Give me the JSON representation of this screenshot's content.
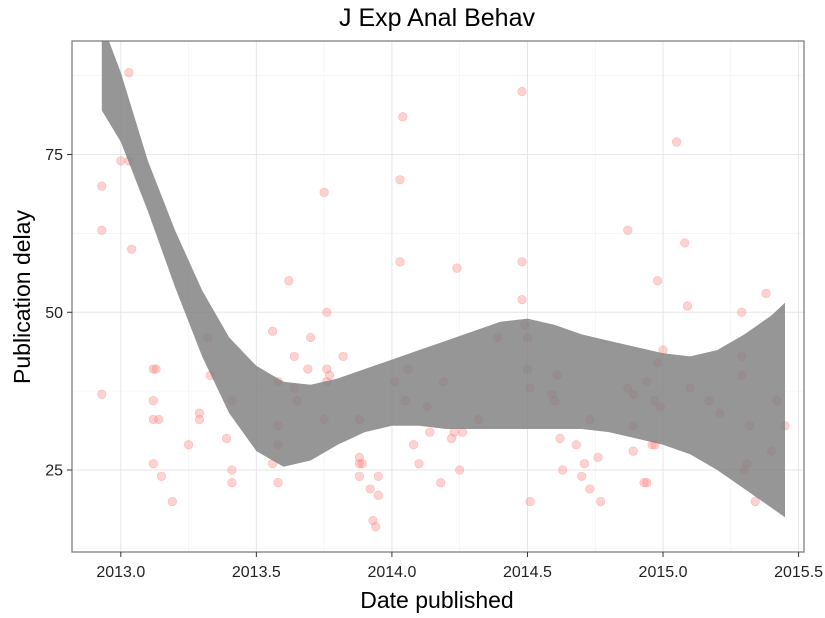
{
  "chart_data": {
    "type": "scatter",
    "title": "J Exp Anal Behav",
    "xlabel": "Date published",
    "ylabel": "Publication delay",
    "xlim": [
      2012.82,
      2015.52
    ],
    "ylim": [
      12,
      93
    ],
    "x_ticks": [
      2013.0,
      2013.5,
      2014.0,
      2014.5,
      2015.0,
      2015.5
    ],
    "x_tick_labels": [
      "2013.0",
      "2013.5",
      "2014.0",
      "2014.5",
      "2015.0",
      "2015.5"
    ],
    "y_ticks": [
      25,
      50,
      75
    ],
    "y_tick_labels": [
      "25",
      "50",
      "75"
    ],
    "grid": true,
    "point_color": "#ff7f7f",
    "band_color": "#7f7f7f",
    "points": [
      [
        2012.93,
        70
      ],
      [
        2012.93,
        63
      ],
      [
        2012.93,
        37
      ],
      [
        2013.0,
        74
      ],
      [
        2013.03,
        74
      ],
      [
        2013.03,
        88
      ],
      [
        2013.04,
        60
      ],
      [
        2013.12,
        41
      ],
      [
        2013.13,
        41
      ],
      [
        2013.12,
        36
      ],
      [
        2013.12,
        33
      ],
      [
        2013.14,
        33
      ],
      [
        2013.12,
        26
      ],
      [
        2013.15,
        24
      ],
      [
        2013.19,
        20
      ],
      [
        2013.25,
        29
      ],
      [
        2013.29,
        34
      ],
      [
        2013.29,
        33
      ],
      [
        2013.32,
        46
      ],
      [
        2013.33,
        40
      ],
      [
        2013.39,
        30
      ],
      [
        2013.41,
        36
      ],
      [
        2013.41,
        25
      ],
      [
        2013.41,
        23
      ],
      [
        2013.56,
        47
      ],
      [
        2013.56,
        26
      ],
      [
        2013.58,
        39
      ],
      [
        2013.58,
        32
      ],
      [
        2013.58,
        29
      ],
      [
        2013.58,
        23
      ],
      [
        2013.62,
        55
      ],
      [
        2013.64,
        43
      ],
      [
        2013.64,
        38
      ],
      [
        2013.65,
        36
      ],
      [
        2013.69,
        41
      ],
      [
        2013.7,
        46
      ],
      [
        2013.75,
        69
      ],
      [
        2013.76,
        50
      ],
      [
        2013.76,
        41
      ],
      [
        2013.76,
        39
      ],
      [
        2013.77,
        40
      ],
      [
        2013.75,
        33
      ],
      [
        2013.82,
        43
      ],
      [
        2013.88,
        33
      ],
      [
        2013.88,
        27
      ],
      [
        2013.88,
        26
      ],
      [
        2013.89,
        26
      ],
      [
        2013.88,
        24
      ],
      [
        2013.92,
        22
      ],
      [
        2013.93,
        17
      ],
      [
        2013.94,
        16
      ],
      [
        2013.95,
        21
      ],
      [
        2013.95,
        24
      ],
      [
        2014.01,
        39
      ],
      [
        2014.03,
        71
      ],
      [
        2014.03,
        58
      ],
      [
        2014.04,
        81
      ],
      [
        2014.05,
        36
      ],
      [
        2014.06,
        41
      ],
      [
        2014.08,
        29
      ],
      [
        2014.1,
        26
      ],
      [
        2014.13,
        35
      ],
      [
        2014.14,
        31
      ],
      [
        2014.18,
        23
      ],
      [
        2014.19,
        39
      ],
      [
        2014.23,
        31
      ],
      [
        2014.22,
        30
      ],
      [
        2014.24,
        57
      ],
      [
        2014.25,
        25
      ],
      [
        2014.26,
        31
      ],
      [
        2014.32,
        33
      ],
      [
        2014.39,
        46
      ],
      [
        2014.48,
        85
      ],
      [
        2014.48,
        58
      ],
      [
        2014.48,
        52
      ],
      [
        2014.49,
        48
      ],
      [
        2014.5,
        46
      ],
      [
        2014.5,
        41
      ],
      [
        2014.51,
        38
      ],
      [
        2014.51,
        20
      ],
      [
        2014.59,
        37
      ],
      [
        2014.6,
        36
      ],
      [
        2014.61,
        40
      ],
      [
        2014.62,
        30
      ],
      [
        2014.63,
        25
      ],
      [
        2014.68,
        29
      ],
      [
        2014.7,
        24
      ],
      [
        2014.71,
        26
      ],
      [
        2014.73,
        33
      ],
      [
        2014.73,
        22
      ],
      [
        2014.76,
        27
      ],
      [
        2014.77,
        20
      ],
      [
        2014.87,
        63
      ],
      [
        2014.87,
        38
      ],
      [
        2014.89,
        37
      ],
      [
        2014.89,
        32
      ],
      [
        2014.89,
        28
      ],
      [
        2014.93,
        23
      ],
      [
        2014.94,
        23
      ],
      [
        2014.94,
        39
      ],
      [
        2014.96,
        29
      ],
      [
        2014.97,
        29
      ],
      [
        2014.97,
        36
      ],
      [
        2014.98,
        42
      ],
      [
        2014.98,
        55
      ],
      [
        2014.99,
        35
      ],
      [
        2015.0,
        44
      ],
      [
        2015.05,
        77
      ],
      [
        2015.08,
        61
      ],
      [
        2015.09,
        51
      ],
      [
        2015.1,
        38
      ],
      [
        2015.17,
        36
      ],
      [
        2015.21,
        34
      ],
      [
        2015.29,
        50
      ],
      [
        2015.29,
        43
      ],
      [
        2015.29,
        40
      ],
      [
        2015.3,
        25
      ],
      [
        2015.31,
        26
      ],
      [
        2015.32,
        32
      ],
      [
        2015.34,
        20
      ],
      [
        2015.4,
        28
      ],
      [
        2015.42,
        36
      ],
      [
        2015.45,
        32
      ],
      [
        2015.38,
        53
      ]
    ],
    "band_upper": [
      [
        2012.93,
        96
      ],
      [
        2013.0,
        88
      ],
      [
        2013.1,
        74
      ],
      [
        2013.2,
        63
      ],
      [
        2013.3,
        53.5
      ],
      [
        2013.4,
        46
      ],
      [
        2013.5,
        41.5
      ],
      [
        2013.6,
        39
      ],
      [
        2013.7,
        38.5
      ],
      [
        2013.8,
        39.5
      ],
      [
        2013.9,
        41
      ],
      [
        2014.0,
        42.5
      ],
      [
        2014.1,
        44
      ],
      [
        2014.2,
        45.5
      ],
      [
        2014.3,
        47
      ],
      [
        2014.4,
        48.5
      ],
      [
        2014.5,
        49
      ],
      [
        2014.6,
        48
      ],
      [
        2014.7,
        46.5
      ],
      [
        2014.8,
        45.5
      ],
      [
        2014.9,
        44.5
      ],
      [
        2015.0,
        43.5
      ],
      [
        2015.1,
        43
      ],
      [
        2015.2,
        44
      ],
      [
        2015.3,
        46.5
      ],
      [
        2015.4,
        49.5
      ],
      [
        2015.45,
        51.5
      ]
    ],
    "band_lower": [
      [
        2012.93,
        82
      ],
      [
        2013.0,
        77
      ],
      [
        2013.1,
        66
      ],
      [
        2013.2,
        54
      ],
      [
        2013.3,
        43
      ],
      [
        2013.4,
        34
      ],
      [
        2013.5,
        28
      ],
      [
        2013.6,
        25.5
      ],
      [
        2013.7,
        26.5
      ],
      [
        2013.8,
        29
      ],
      [
        2013.9,
        31
      ],
      [
        2014.0,
        32
      ],
      [
        2014.1,
        32
      ],
      [
        2014.2,
        31.5
      ],
      [
        2014.3,
        31.5
      ],
      [
        2014.4,
        31.5
      ],
      [
        2014.5,
        31.5
      ],
      [
        2014.6,
        31.5
      ],
      [
        2014.7,
        31.5
      ],
      [
        2014.8,
        31
      ],
      [
        2014.9,
        30
      ],
      [
        2015.0,
        29
      ],
      [
        2015.1,
        27.5
      ],
      [
        2015.2,
        25
      ],
      [
        2015.3,
        22
      ],
      [
        2015.4,
        19
      ],
      [
        2015.45,
        17.5
      ]
    ]
  }
}
